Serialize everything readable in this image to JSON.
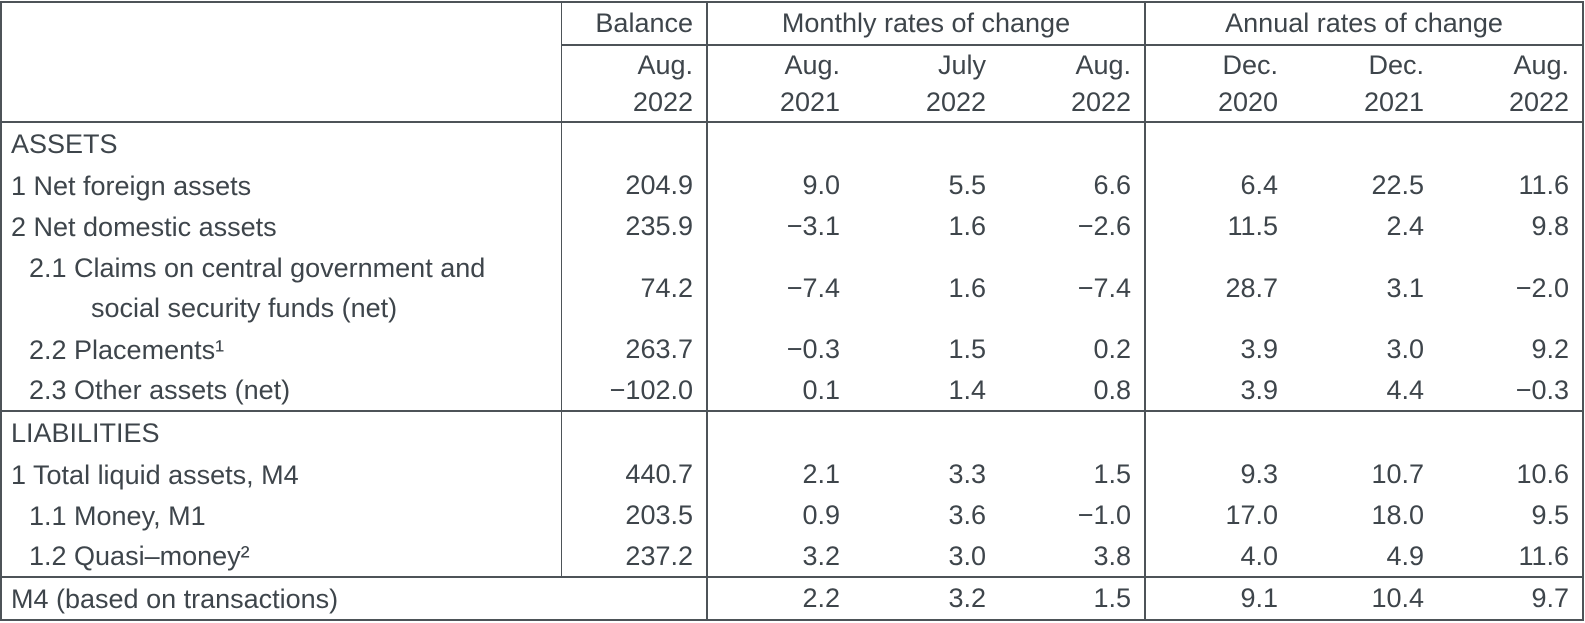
{
  "table": {
    "title_hint": "monetary-aggregates-table",
    "header": {
      "balance_group": "Balance",
      "monthly_group": "Monthly rates of change",
      "annual_group": "Annual rates of change",
      "subheaders": [
        {
          "line1": "Aug.",
          "line2": "2022"
        },
        {
          "line1": "Aug.",
          "line2": "2021"
        },
        {
          "line1": "July",
          "line2": "2022"
        },
        {
          "line1": "Aug.",
          "line2": "2022"
        },
        {
          "line1": "Dec.",
          "line2": "2020"
        },
        {
          "line1": "Dec.",
          "line2": "2021"
        },
        {
          "line1": "Aug.",
          "line2": "2022"
        }
      ]
    },
    "rows": [
      {
        "group": "assets",
        "kind": "section",
        "indent": 0,
        "label": "ASSETS",
        "values": [
          "",
          "",
          "",
          "",
          "",
          "",
          ""
        ]
      },
      {
        "group": "assets",
        "kind": "item",
        "indent": 0,
        "label": "1 Net foreign assets",
        "values": [
          "204.9",
          "9.0",
          "5.5",
          "6.6",
          "6.4",
          "22.5",
          "11.6"
        ]
      },
      {
        "group": "assets",
        "kind": "item",
        "indent": 0,
        "label": "2 Net domestic assets",
        "values": [
          "235.9",
          "−3.1",
          "1.6",
          "−2.6",
          "11.5",
          "2.4",
          "9.8"
        ]
      },
      {
        "group": "assets",
        "kind": "item",
        "indent": 1,
        "label_lines": [
          "2.1 Claims on central government and",
          "social security funds (net)"
        ],
        "values": [
          "74.2",
          "−7.4",
          "1.6",
          "−7.4",
          "28.7",
          "3.1",
          "−2.0"
        ]
      },
      {
        "group": "assets",
        "kind": "item",
        "indent": 1,
        "label": "2.2 Placements¹",
        "values": [
          "263.7",
          "−0.3",
          "1.5",
          "0.2",
          "3.9",
          "3.0",
          "9.2"
        ]
      },
      {
        "group": "assets",
        "kind": "item",
        "indent": 1,
        "label": "2.3 Other assets (net)",
        "values": [
          "−102.0",
          "0.1",
          "1.4",
          "0.8",
          "3.9",
          "4.4",
          "−0.3"
        ]
      },
      {
        "group": "liabilities",
        "kind": "section",
        "indent": 0,
        "label": "LIABILITIES",
        "values": [
          "",
          "",
          "",
          "",
          "",
          "",
          ""
        ]
      },
      {
        "group": "liabilities",
        "kind": "item",
        "indent": 0,
        "label": "1 Total liquid assets, M4",
        "values": [
          "440.7",
          "2.1",
          "3.3",
          "1.5",
          "9.3",
          "10.7",
          "10.6"
        ]
      },
      {
        "group": "liabilities",
        "kind": "item",
        "indent": 1,
        "label": "1.1 Money, M1",
        "values": [
          "203.5",
          "0.9",
          "3.6",
          "−1.0",
          "17.0",
          "18.0",
          "9.5"
        ]
      },
      {
        "group": "liabilities",
        "kind": "item",
        "indent": 1,
        "label": "1.2 Quasi–money²",
        "values": [
          "237.2",
          "3.2",
          "3.0",
          "3.8",
          "4.0",
          "4.9",
          "11.6"
        ]
      },
      {
        "group": "footer",
        "kind": "footer",
        "indent": 0,
        "label": "M4 (based on transactions)",
        "values": [
          "",
          "2.2",
          "3.2",
          "1.5",
          "9.1",
          "10.4",
          "9.7"
        ]
      }
    ]
  }
}
